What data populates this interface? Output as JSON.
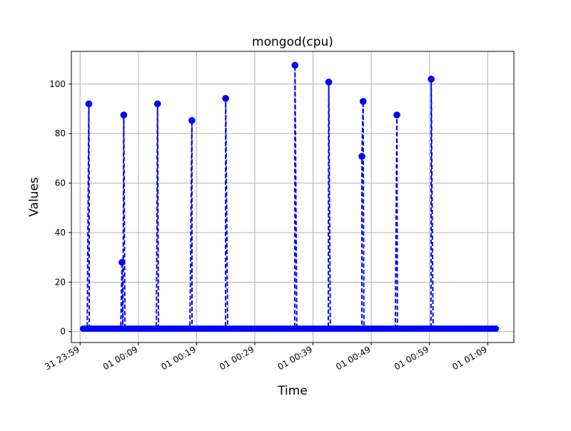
{
  "chart_data": {
    "type": "line",
    "title": "mongod(cpu)",
    "xlabel": "Time",
    "ylabel": "Values",
    "x_unit": "minutes",
    "x_tick_labels": [
      "31 23:59",
      "01 00:09",
      "01 00:19",
      "01 00:29",
      "01 00:39",
      "01 00:49",
      "01 00:59",
      "01 01:09"
    ],
    "x_tick_values": [
      0,
      10,
      20,
      30,
      40,
      50,
      60,
      70
    ],
    "xlim": [
      -1.5,
      74.5
    ],
    "ylim": [
      -4.4,
      113.2
    ],
    "y_ticks": [
      0,
      20,
      40,
      60,
      80,
      100
    ],
    "grid": true,
    "series": [
      {
        "color": "#0000ff",
        "line_style": "dashed",
        "marker": "circle",
        "baseline_value": 1.2,
        "baseline_x_range": [
          0.5,
          71.5
        ],
        "baseline_sample_step": 0.36,
        "spikes": [
          {
            "x": 1.5,
            "y": 92
          },
          {
            "x": 7.2,
            "y": 28
          },
          {
            "x": 7.5,
            "y": 87.5
          },
          {
            "x": 13.3,
            "y": 92
          },
          {
            "x": 19.2,
            "y": 85.3
          },
          {
            "x": 25.0,
            "y": 94.2
          },
          {
            "x": 36.9,
            "y": 107.6
          },
          {
            "x": 42.7,
            "y": 100.8
          },
          {
            "x": 48.4,
            "y": 70.8
          },
          {
            "x": 48.6,
            "y": 93
          },
          {
            "x": 54.4,
            "y": 87.5
          },
          {
            "x": 60.3,
            "y": 102
          }
        ]
      }
    ]
  }
}
